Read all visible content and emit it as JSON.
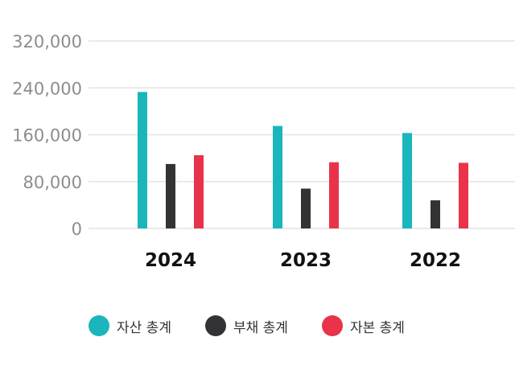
{
  "chart_data": {
    "type": "bar",
    "categories": [
      "2024",
      "2023",
      "2022"
    ],
    "series": [
      {
        "name": "자산 총계",
        "color": "#1ab6bc",
        "values": [
          233000,
          175000,
          163000
        ]
      },
      {
        "name": "부채 총계",
        "color": "#333335",
        "values": [
          110000,
          68000,
          48000
        ]
      },
      {
        "name": "자본 총계",
        "color": "#e8334a",
        "values": [
          125000,
          113000,
          112000
        ]
      }
    ],
    "yticks": [
      "0",
      "80,000",
      "160,000",
      "240,000",
      "320,000"
    ],
    "ytick_values": [
      0,
      80000,
      160000,
      240000,
      320000
    ],
    "ylim": [
      0,
      320000
    ],
    "grid": true,
    "legend_position": "bottom"
  }
}
